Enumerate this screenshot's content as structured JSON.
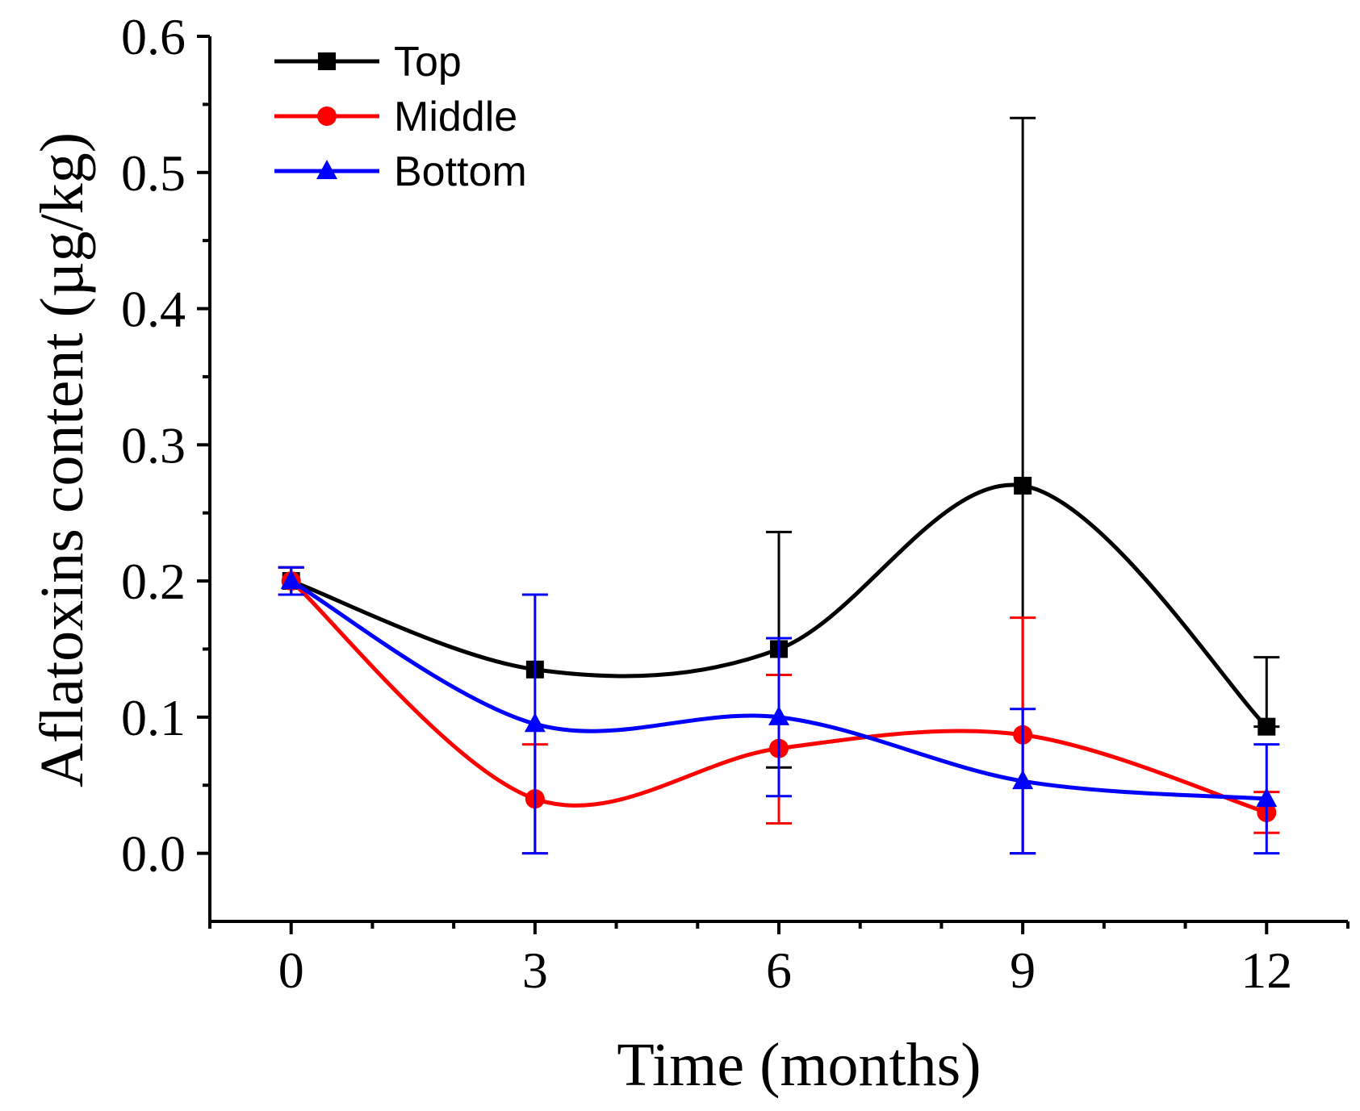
{
  "chart_data": {
    "type": "line",
    "title": "",
    "xlabel": "Time (months)",
    "ylabel": "Aflatoxins content (µg/kg)",
    "x": [
      0,
      3,
      6,
      9,
      12
    ],
    "xlim": [
      -1,
      13
    ],
    "ylim": [
      -0.05,
      0.6
    ],
    "xticks": [
      0,
      3,
      6,
      9,
      12
    ],
    "xtick_labels": [
      "0",
      "3",
      "6",
      "9",
      "12"
    ],
    "yticks": [
      0.0,
      0.1,
      0.2,
      0.3,
      0.4,
      0.5,
      0.6
    ],
    "ytick_labels": [
      "0.0",
      "0.1",
      "0.2",
      "0.3",
      "0.4",
      "0.5",
      "0.6"
    ],
    "grid": false,
    "legend_position": "top-left",
    "smooth": true,
    "series": [
      {
        "name": "Top",
        "color": "#000000",
        "marker": "square",
        "values": [
          0.2,
          0.135,
          0.15,
          0.27,
          0.093
        ],
        "err_low": [
          0.19,
          0.135,
          0.063,
          0.0,
          0.093
        ],
        "err_high": [
          0.21,
          0.135,
          0.236,
          0.54,
          0.144
        ]
      },
      {
        "name": "Middle",
        "color": "#ff0000",
        "marker": "circle",
        "values": [
          0.2,
          0.04,
          0.077,
          0.087,
          0.03
        ],
        "err_low": [
          0.19,
          0.0,
          0.022,
          0.0,
          0.015
        ],
        "err_high": [
          0.21,
          0.08,
          0.131,
          0.173,
          0.045
        ]
      },
      {
        "name": "Bottom",
        "color": "#0000ff",
        "marker": "triangle",
        "values": [
          0.2,
          0.095,
          0.1,
          0.053,
          0.04
        ],
        "err_low": [
          0.19,
          0.0,
          0.042,
          0.0,
          0.0
        ],
        "err_high": [
          0.21,
          0.19,
          0.158,
          0.106,
          0.08
        ]
      }
    ]
  }
}
